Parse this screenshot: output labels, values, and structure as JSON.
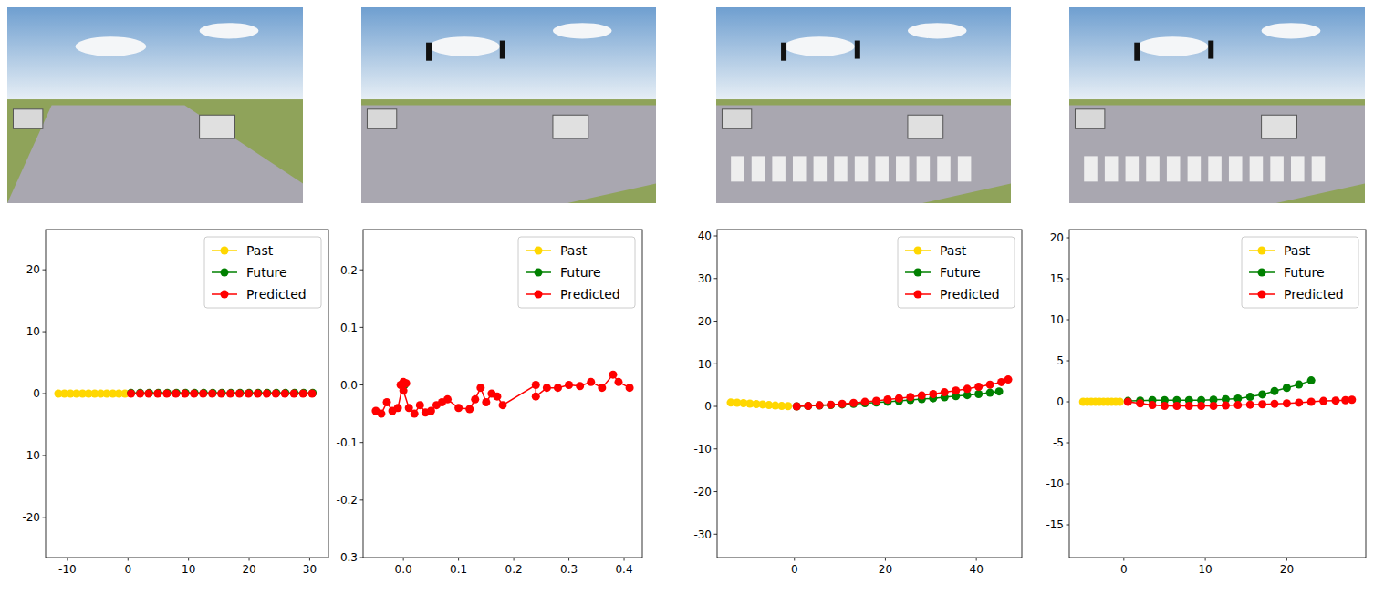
{
  "chart_data": [
    {
      "type": "line",
      "marker": "circle",
      "legend": "upper right",
      "xlim": [
        -13.6,
        33.1
      ],
      "ylim": [
        -26.5,
        26.5
      ],
      "xticks": [
        -10,
        0,
        10,
        20,
        30
      ],
      "yticks": [
        -20,
        -10,
        0,
        10,
        20
      ],
      "series": [
        {
          "name": "Past",
          "color": "#ffd700",
          "x": [
            -11.5,
            -10.5,
            -9.5,
            -8.5,
            -7.5,
            -6.5,
            -5.5,
            -4.5,
            -3.5,
            -2.5,
            -1.5,
            -0.5
          ],
          "values": [
            0,
            0,
            0,
            0,
            0,
            0,
            0,
            0,
            0,
            0,
            0,
            0
          ]
        },
        {
          "name": "Future",
          "color": "#008000",
          "x": [
            0.5,
            2,
            3.5,
            5,
            6.5,
            8,
            9.5,
            11,
            12.5,
            14,
            15.5,
            17,
            18.5,
            20,
            21.5,
            23,
            24.5,
            26,
            27.5,
            29,
            30.5
          ],
          "values": [
            0.1,
            0.1,
            0.1,
            0.1,
            0.1,
            0.1,
            0.1,
            0.1,
            0.1,
            0.1,
            0.1,
            0.1,
            0.1,
            0.1,
            0.1,
            0.1,
            0.1,
            0.1,
            0.1,
            0.1,
            0.1
          ]
        },
        {
          "name": "Predicted",
          "color": "#ff0000",
          "x": [
            0.5,
            2,
            3.4,
            4.9,
            6.4,
            7.9,
            9.4,
            10.9,
            12.4,
            13.9,
            15.4,
            16.9,
            18.4,
            19.9,
            21.4,
            22.9,
            24.4,
            25.9,
            27.4,
            28.9,
            30.4
          ],
          "values": [
            0,
            0,
            0,
            0,
            0,
            0,
            0,
            0,
            0,
            0,
            0,
            0,
            0,
            0,
            0,
            0,
            0,
            0,
            0,
            0,
            0
          ]
        }
      ]
    },
    {
      "type": "line",
      "marker": "circle",
      "legend": "upper right",
      "xlim": [
        -0.073,
        0.433
      ],
      "ylim": [
        -0.3,
        0.27
      ],
      "xticks": [
        {
          "value": 0,
          "label": "0.0"
        },
        0.1,
        0.2,
        0.3,
        0.4
      ],
      "yticks": [
        -0.3,
        -0.2,
        -0.1,
        {
          "value": 0,
          "label": "0.0"
        },
        0.1,
        0.2
      ],
      "series": [
        {
          "name": "Past",
          "color": "#ffd700",
          "x": [
            -0.002,
            -0.001,
            0
          ],
          "values": [
            0,
            0,
            0
          ]
        },
        {
          "name": "Future",
          "color": "#008000",
          "x": [
            0,
            0.001,
            0.002
          ],
          "values": [
            0,
            0,
            0
          ]
        },
        {
          "name": "Predicted",
          "color": "#ff0000",
          "x": [
            -0.05,
            -0.04,
            -0.03,
            -0.02,
            -0.01,
            0,
            -0.005,
            0.005,
            0,
            0.01,
            0.02,
            0.03,
            0.04,
            0.05,
            0.06,
            0.07,
            0.08,
            0.1,
            0.12,
            0.13,
            0.14,
            0.15,
            0.16,
            0.17,
            0.18,
            0.24,
            0.24,
            0.26,
            0.28,
            0.3,
            0.32,
            0.34,
            0.36,
            0.38,
            0.39,
            0.41
          ],
          "values": [
            -0.045,
            -0.05,
            -0.03,
            -0.045,
            -0.04,
            0.005,
            0,
            0.003,
            -0.01,
            -0.04,
            -0.05,
            -0.035,
            -0.048,
            -0.045,
            -0.035,
            -0.03,
            -0.025,
            -0.04,
            -0.042,
            -0.025,
            -0.005,
            -0.03,
            -0.015,
            -0.02,
            -0.035,
            0,
            -0.02,
            -0.005,
            -0.005,
            0,
            -0.002,
            0.005,
            -0.005,
            0.018,
            0.005,
            -0.005
          ]
        }
      ]
    },
    {
      "type": "line",
      "marker": "circle",
      "legend": "upper right",
      "xlim": [
        -17,
        50
      ],
      "ylim": [
        -35.5,
        41.5
      ],
      "xticks": [
        0,
        20,
        40
      ],
      "yticks": [
        -30,
        -20,
        -10,
        0,
        10,
        20,
        30,
        40
      ],
      "series": [
        {
          "name": "Past",
          "color": "#ffd700",
          "x": [
            -14,
            -12.6,
            -11.2,
            -9.8,
            -8.4,
            -7,
            -5.6,
            -4.2,
            -2.8,
            -1.4
          ],
          "values": [
            0.9,
            0.85,
            0.75,
            0.65,
            0.55,
            0.45,
            0.3,
            0.2,
            0.1,
            0.05
          ]
        },
        {
          "name": "Future",
          "color": "#008000",
          "x": [
            0.5,
            3,
            5.5,
            8,
            10.5,
            13,
            15.5,
            18,
            20.5,
            23,
            25.5,
            28,
            30.5,
            33,
            35.5,
            38,
            40.5,
            43,
            45
          ],
          "values": [
            0,
            0.1,
            0.2,
            0.3,
            0.45,
            0.6,
            0.75,
            0.9,
            1.1,
            1.3,
            1.5,
            1.7,
            1.9,
            2.15,
            2.4,
            2.65,
            2.9,
            3.2,
            3.5
          ]
        },
        {
          "name": "Predicted",
          "color": "#ff0000",
          "x": [
            0.5,
            3,
            5.5,
            8,
            10.5,
            13,
            15.5,
            18,
            20.5,
            23,
            25.5,
            28,
            30.5,
            33,
            35.5,
            38,
            40.5,
            43,
            45.5,
            47
          ],
          "values": [
            0,
            0.1,
            0.25,
            0.4,
            0.6,
            0.8,
            1.05,
            1.3,
            1.6,
            1.9,
            2.2,
            2.55,
            2.9,
            3.3,
            3.7,
            4.1,
            4.6,
            5.1,
            5.7,
            6.3
          ]
        }
      ]
    },
    {
      "type": "line",
      "marker": "circle",
      "legend": "upper right",
      "xlim": [
        -6.7,
        29.7
      ],
      "ylim": [
        -19,
        21
      ],
      "xticks": [
        0,
        10,
        20
      ],
      "yticks": [
        -15,
        -10,
        -5,
        0,
        5,
        10,
        15,
        20
      ],
      "series": [
        {
          "name": "Past",
          "color": "#ffd700",
          "x": [
            -5,
            -4.5,
            -4,
            -3.5,
            -3,
            -2.5,
            -2,
            -1.5,
            -1,
            -0.5
          ],
          "values": [
            0,
            0,
            0,
            0,
            0,
            0,
            0,
            0,
            0,
            0
          ]
        },
        {
          "name": "Future",
          "color": "#008000",
          "x": [
            0.5,
            2,
            3.5,
            5,
            6.5,
            8,
            9.5,
            11,
            12.5,
            14,
            15.5,
            17,
            18.5,
            20,
            21.5,
            23
          ],
          "values": [
            0.1,
            0.15,
            0.2,
            0.2,
            0.2,
            0.2,
            0.2,
            0.25,
            0.3,
            0.4,
            0.6,
            0.9,
            1.3,
            1.7,
            2.1,
            2.6
          ]
        },
        {
          "name": "Predicted",
          "color": "#ff0000",
          "x": [
            0.5,
            2,
            3.5,
            5,
            6.5,
            8,
            9.5,
            11,
            12.5,
            14,
            15.5,
            17,
            18.5,
            20,
            21.5,
            23,
            24.5,
            26,
            27.2,
            28
          ],
          "values": [
            0,
            -0.2,
            -0.4,
            -0.5,
            -0.5,
            -0.5,
            -0.5,
            -0.5,
            -0.45,
            -0.4,
            -0.35,
            -0.3,
            -0.25,
            -0.2,
            -0.1,
            0,
            0.1,
            0.15,
            0.2,
            0.25
          ]
        }
      ]
    }
  ]
}
